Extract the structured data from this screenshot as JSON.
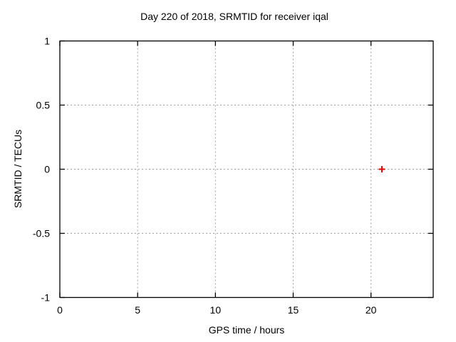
{
  "chart_data": {
    "type": "scatter",
    "title": "Day 220 of 2018, SRMTID for receiver iqal",
    "xlabel": "GPS time / hours",
    "ylabel": "SRMTID / TECUs",
    "xlim": [
      0,
      24
    ],
    "ylim": [
      -1,
      1
    ],
    "xticks": [
      0,
      5,
      10,
      15,
      20
    ],
    "xtick_labels": [
      "0",
      "5",
      "10",
      "15",
      "20"
    ],
    "yticks": [
      -1,
      -0.5,
      0,
      0.5,
      1
    ],
    "ytick_labels": [
      "-1",
      "-0.5",
      "0",
      "0.5",
      "1"
    ],
    "grid": true,
    "legend": "none",
    "series": [
      {
        "name": "SRMTID",
        "marker": "plus",
        "color": "#e80000",
        "points": [
          {
            "x": 20.7,
            "y": 0
          }
        ]
      }
    ],
    "colors": {
      "background": "#ffffff",
      "frame": "#000000",
      "grid": "#a0a0a0",
      "text": "#000000"
    }
  }
}
